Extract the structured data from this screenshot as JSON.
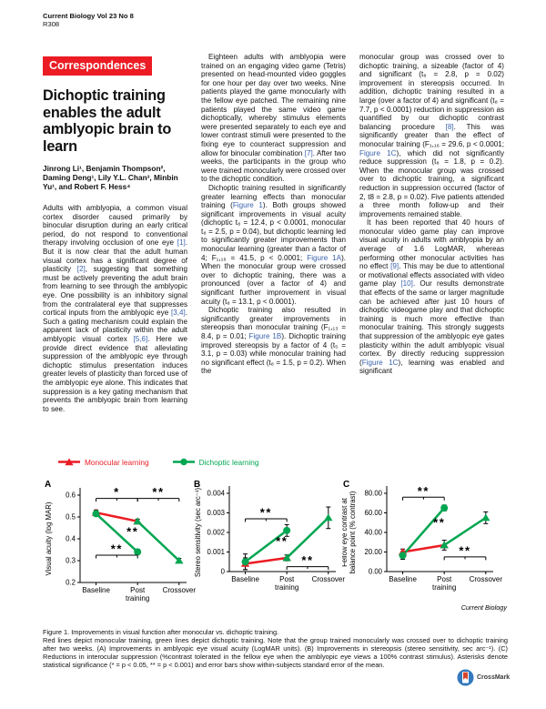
{
  "colors": {
    "accent_red": "#EC1C24",
    "line_red": "#EC1C24",
    "line_green": "#00A651",
    "citation_blue": "#3B63AE",
    "crossmark_blue": "#3579BE",
    "crossmark_red": "#D6442D"
  },
  "header": {
    "journal_line": "Current Biology Vol 23 No 8",
    "page_number": "R308"
  },
  "article": {
    "section": "Correspondences",
    "title": "Dichoptic training enables the adult amblyopic brain to learn",
    "authors": "Jinrong Li¹, Benjamin Thompson², Daming Deng¹, Lily Y.L. Chan³, Minbin Yu¹, and Robert F. Hess⁴",
    "columns": [
      {
        "paragraphs": [
          {
            "indent": false,
            "segments": [
              {
                "t": "Adults with amblyopia, a common visual cortex disorder caused primarily by binocular disruption during an early critical period, do not respond to conventional therapy involving occlusion of one eye "
              },
              {
                "t": "[1]",
                "link": true
              },
              {
                "t": ". But it is now clear that the adult human visual cortex has a significant degree of plasticity "
              },
              {
                "t": "[2]",
                "link": true
              },
              {
                "t": ", suggesting that something must be actively preventing the adult brain from learning to see through the amblyopic eye. One possibility is an inhibitory signal from the contralateral eye that suppresses cortical inputs from the amblyopic eye "
              },
              {
                "t": "[3,4]",
                "link": true
              },
              {
                "t": ". Such a gating mechanism could explain the apparent lack of plasticity within the adult amblyopic visual cortex "
              },
              {
                "t": "[5,6]",
                "link": true
              },
              {
                "t": ". Here we provide direct evidence that alleviating suppression of the amblyopic eye through dichoptic stimulus presentation induces greater levels of plasticity than forced use of the amblyopic eye alone. This indicates that suppression is a key gating mechanism that prevents the amblyopic brain from learning to see."
              }
            ]
          }
        ]
      },
      {
        "paragraphs": [
          {
            "indent": true,
            "segments": [
              {
                "t": "Eighteen adults with amblyopia were trained on an engaging video game (Tetris) presented on head-mounted video goggles for one hour per day over two weeks. Nine patients played the game monocularly with the fellow eye patched. The remaining nine patients played the same video game dichoptically, whereby stimulus elements were presented separately to each eye and lower contrast stimuli were presented to the fixing eye to counteract suppression and allow for binocular combination "
              },
              {
                "t": "[7]",
                "link": true
              },
              {
                "t": ". After two weeks, the participants in the group who were trained monocularly were crossed over to the dichoptic condition."
              }
            ]
          },
          {
            "indent": true,
            "segments": [
              {
                "t": "Dichoptic training resulted in significantly greater learning effects than monocular training ("
              },
              {
                "t": "Figure 1",
                "link": true
              },
              {
                "t": "). Both groups showed significant improvements in visual acuity (dichoptic t₈ = 12.4, p < 0.0001, monocular t₈ = 2.5, p = 0.04), but dichoptic learning led to significantly greater improvements than monocular learning (greater than a factor of 4; F₁,₁₆ = 41.5, p < 0.0001; "
              },
              {
                "t": "Figure 1A",
                "link": true
              },
              {
                "t": "). When the monocular group were crossed over to dichoptic training, there was a pronounced (over a factor of 4) and significant further improvement in visual acuity (t₈ = 13.1, p < 0.0001)."
              }
            ]
          },
          {
            "indent": true,
            "segments": [
              {
                "t": "Dichoptic training also resulted in significantly greater improvements in stereopsis than monocular training (F₁,₁₃ = 8.4, p = 0.01; "
              },
              {
                "t": "Figure 1B",
                "link": true
              },
              {
                "t": "). Dichoptic training improved stereopsis by a factor of 4 (t₅ = 3.1, p = 0.03) while monocular training had no significant effect (t₈ = 1.5, p = 0.2). When the"
              }
            ]
          }
        ]
      },
      {
        "paragraphs": [
          {
            "indent": false,
            "segments": [
              {
                "t": "monocular group was crossed over to dichoptic training, a sizeable (factor of 4) and significant (t₈ = 2.8, p = 0.02) improvement in stereopsis occurred. In addition, dichoptic training resulted in a large (over a factor of 4) and significant (t₈ = 7.7, p < 0.0001) reduction in suppression as quantified by our dichoptic contrast balancing procedure "
              },
              {
                "t": "[8]",
                "link": true
              },
              {
                "t": ". This was significantly greater than the effect of monocular training (F₁,₁₆ = 29.6, p < 0.0001; "
              },
              {
                "t": "Figure 1C",
                "link": true
              },
              {
                "t": "), which did not significantly reduce suppression (t₈ = 1.8, p = 0.2). When the monocular group was crossed over to dichoptic training, a significant reduction in suppression occurred (factor of 2, t8 = 2.8, p = 0.02). Five patients attended a three month follow-up and their improvements remained stable."
              }
            ]
          },
          {
            "indent": true,
            "segments": [
              {
                "t": "It has been reported that 40 hours of monocular video game play can improve visual acuity in adults with amblyopia by an average of 1.6 LogMAR, whereas performing other monocular activities has no effect "
              },
              {
                "t": "[9]",
                "link": true
              },
              {
                "t": ". This may be due to attentional or motivational effects associated with video game play "
              },
              {
                "t": "[10]",
                "link": true
              },
              {
                "t": ". Our results demonstrate that effects of the same or larger magnitude can be achieved after just 10 hours of dichoptic videogame play and that dichoptic training is much more effective than monocular training. This strongly suggests that suppression of the amblyopic eye gates plasticity within the adult amblyopic visual cortex. By directly reducing suppression ("
              },
              {
                "t": "Figure 1C",
                "link": true
              },
              {
                "t": "), learning was enabled and significant"
              }
            ]
          }
        ]
      }
    ]
  },
  "figure": {
    "journal_mark": "Current Biology",
    "legend": [
      {
        "label": "Monocular learning",
        "color": "#EC1C24",
        "marker": "triangle"
      },
      {
        "label": "Dichoptic learning",
        "color": "#00A651",
        "marker": "circle"
      }
    ],
    "chart_data": [
      {
        "label": "A",
        "type": "line",
        "ylabel": "Visual acuity (log MAR)",
        "ylim": [
          0.2,
          0.6
        ],
        "yticks": [
          {
            "v": 0.2,
            "l": "0.2"
          },
          {
            "v": 0.3,
            "l": "0.3"
          },
          {
            "v": 0.4,
            "l": "0.4"
          },
          {
            "v": 0.5,
            "l": "0.5"
          },
          {
            "v": 0.6,
            "l": "0.6"
          }
        ],
        "categories": [
          "Baseline",
          "Post|training",
          "Crossover"
        ],
        "geom": {
          "L": 40,
          "T": 20,
          "B": 116
        },
        "series": [
          {
            "name": "Monocular learning",
            "color": "#EC1C24",
            "marker": "triangle",
            "x": [
              0,
              1
            ],
            "y": [
              0.52,
              0.48
            ],
            "err": [
              0.012,
              0.01
            ]
          },
          {
            "name": "Dichoptic learning",
            "color": "#00A651",
            "marker": "circle",
            "x": [
              0,
              1
            ],
            "y": [
              0.515,
              0.34
            ],
            "err": [
              0.01,
              0.012
            ]
          },
          {
            "name": "Monocular group after crossover to dichoptic",
            "color": "#00A651",
            "marker": "triangle",
            "x": [
              1,
              2
            ],
            "y": [
              0.48,
              0.3
            ],
            "err": [
              0,
              0.01
            ]
          }
        ],
        "sig_brackets": [
          {
            "x1": 0,
            "x2": 1,
            "y": 0.585,
            "label": "*"
          },
          {
            "x1": 1,
            "x2": 2,
            "y": 0.585,
            "label": "**"
          },
          {
            "x1": 0,
            "x2": 1,
            "y": 0.325,
            "label": "**"
          }
        ],
        "sig_texts": [
          {
            "x": 0.88,
            "y": 0.415,
            "label": "**"
          }
        ]
      },
      {
        "label": "B",
        "type": "line",
        "ylabel": "Stereo sensitivity (sec arc⁻¹)",
        "ylim": [
          0,
          0.004
        ],
        "yticks": [
          {
            "v": 0,
            "l": "0"
          },
          {
            "v": 0.001,
            "l": "0.001"
          },
          {
            "v": 0.002,
            "l": "0.002"
          },
          {
            "v": 0.003,
            "l": "0.003"
          },
          {
            "v": 0.004,
            "l": "0.004"
          }
        ],
        "categories": [
          "Baseline",
          "Post|training",
          "Crossover"
        ],
        "geom": {
          "L": 40,
          "T": 18,
          "B": 104
        },
        "series": [
          {
            "name": "Monocular learning",
            "color": "#EC1C24",
            "marker": "triangle",
            "x": [
              0,
              1
            ],
            "y": [
              0.0004,
              0.0007
            ],
            "err": [
              0.0003,
              0.00015
            ]
          },
          {
            "name": "Dichoptic learning",
            "color": "#00A651",
            "marker": "circle",
            "x": [
              0,
              1
            ],
            "y": [
              0.0005,
              0.0021
            ],
            "err": [
              0.0004,
              0.0003
            ]
          },
          {
            "name": "Monocular group after crossover to dichoptic",
            "color": "#00A651",
            "marker": "triangle",
            "x": [
              1,
              2
            ],
            "y": [
              0.0007,
              0.00275
            ],
            "err": [
              0,
              0.00055
            ]
          }
        ],
        "sig_brackets": [
          {
            "x1": 0,
            "x2": 1,
            "y": 0.0027,
            "label": "**"
          },
          {
            "x1": 1,
            "x2": 2,
            "y": 0.00025,
            "label": "**"
          }
        ],
        "sig_texts": [
          {
            "x": 0.88,
            "y": 0.00135,
            "label": "**"
          }
        ]
      },
      {
        "label": "C",
        "type": "line",
        "ylabel": "Fellow eye contrast at|balance point (% contrast)",
        "ylim": [
          0,
          80
        ],
        "yticks": [
          {
            "v": 0,
            "l": "0.00"
          },
          {
            "v": 20,
            "l": "20.00"
          },
          {
            "v": 40,
            "l": "40.00"
          },
          {
            "v": 60,
            "l": "60.00"
          },
          {
            "v": 80,
            "l": "80.00"
          }
        ],
        "categories": [
          "Baseline",
          "Post|training",
          "Crossover"
        ],
        "geom": {
          "L": 49,
          "T": 18,
          "B": 104
        },
        "series": [
          {
            "name": "Monocular learning",
            "color": "#EC1C24",
            "marker": "triangle",
            "x": [
              0,
              1
            ],
            "y": [
              20,
              27
            ],
            "err": [
              3,
              5
            ]
          },
          {
            "name": "Dichoptic learning",
            "color": "#00A651",
            "marker": "circle",
            "x": [
              0,
              1
            ],
            "y": [
              16.5,
              65
            ],
            "err": [
              4,
              3
            ]
          },
          {
            "name": "Monocular group after crossover to dichoptic",
            "color": "#00A651",
            "marker": "triangle",
            "x": [
              1,
              2
            ],
            "y": [
              27,
              55
            ],
            "err": [
              0,
              6
            ]
          }
        ],
        "sig_brackets": [
          {
            "x1": 0,
            "x2": 1,
            "y": 76,
            "label": "**"
          },
          {
            "x1": 1,
            "x2": 2,
            "y": 15,
            "label": "**"
          }
        ],
        "sig_texts": [
          {
            "x": 0.88,
            "y": 46,
            "label": "**"
          }
        ]
      }
    ]
  },
  "caption": {
    "title": "Figure 1. Improvements in visual function after monocular vs. dichoptic training.",
    "body": "Red lines depict monocular training, green lines depict dichoptic training. Note that the group trained monocularly was crossed over to dichoptic training after two weeks. (A) Improvements in amblyopic eye visual acuity (LogMAR units). (B) Improvements in stereopsis (stereo sensitivity, sec arc⁻¹). (C) Reductions in interocular suppression (%contrast tolerated in the fellow eye when the amblyopic eye views a 100% contrast stimulus). Asterisks denote statistical significance (* = p < 0.05, ** = p < 0.001) and error bars show within-subjects standard error of the mean."
  },
  "crossmark": {
    "label": "CrossMark"
  }
}
